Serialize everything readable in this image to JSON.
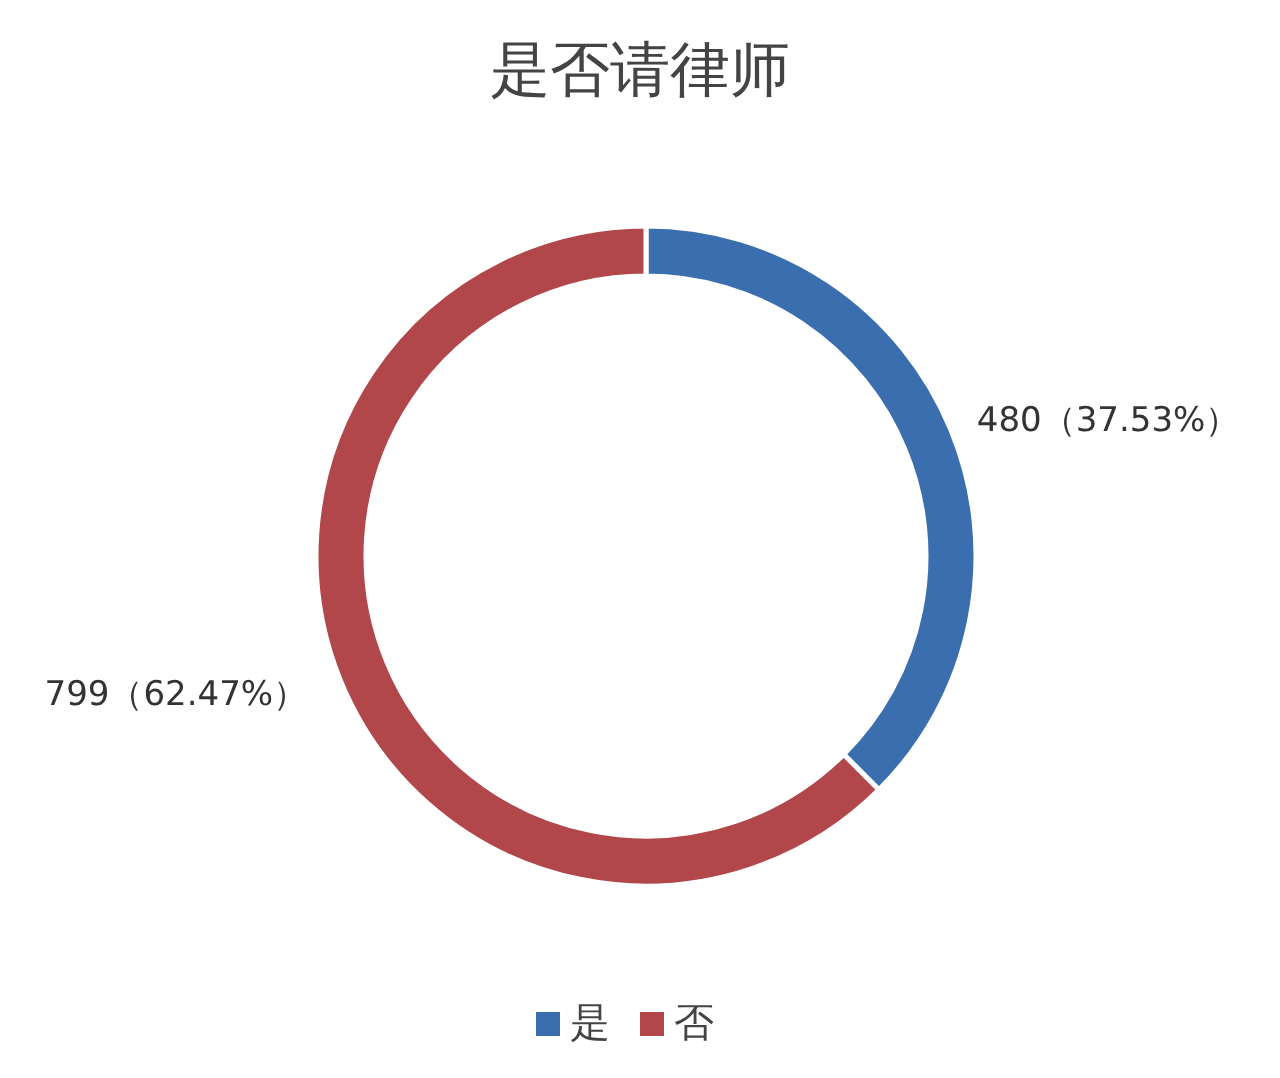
{
  "chart_data": {
    "type": "donut",
    "title": "是否请律师",
    "categories": [
      "是",
      "否"
    ],
    "values": [
      480,
      799
    ],
    "colors": [
      "#3b6eaf",
      "#b1474a"
    ],
    "value_labels": [
      "480（37.53%）",
      "799（62.47%）"
    ],
    "legend": "bottom"
  }
}
